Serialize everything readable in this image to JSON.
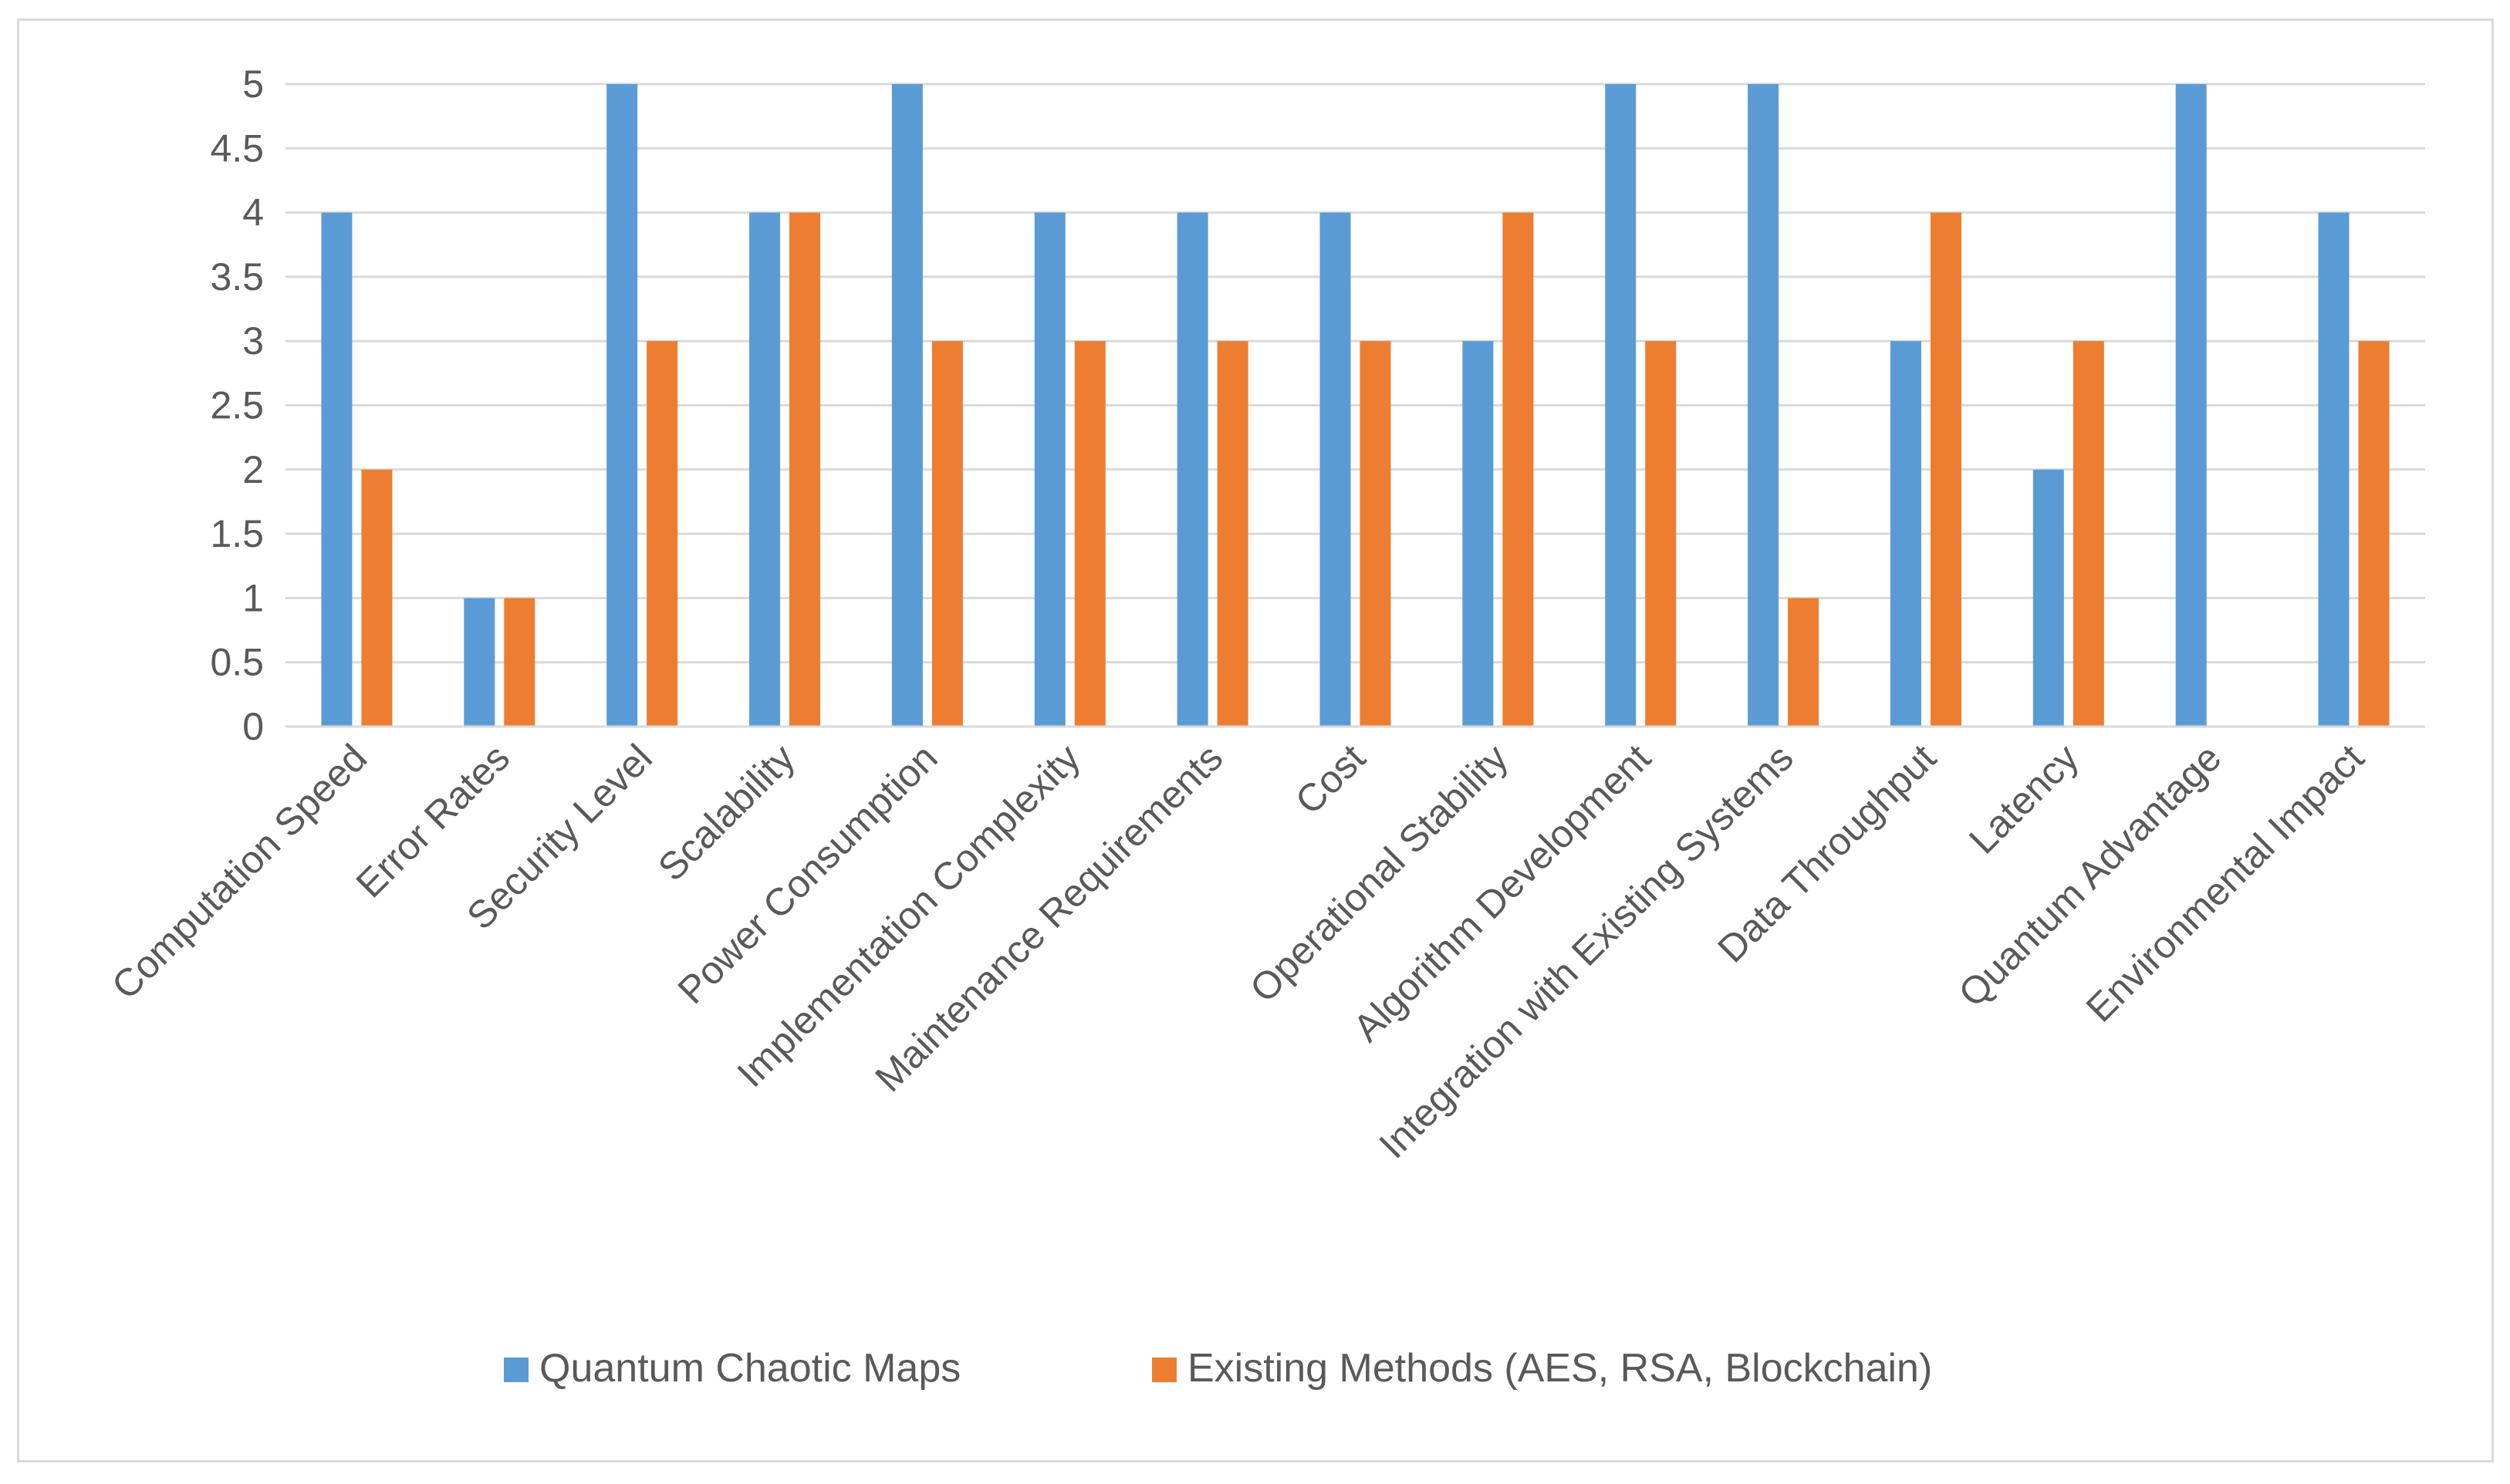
{
  "chart_data": {
    "type": "bar",
    "title": "",
    "xlabel": "",
    "ylabel": "",
    "ylim": [
      0,
      5
    ],
    "yticks": [
      "0",
      "0.5",
      "1",
      "1.5",
      "2",
      "2.5",
      "3",
      "3.5",
      "4",
      "4.5",
      "5"
    ],
    "grid": true,
    "legend_position": "bottom",
    "categories": [
      "Computation Speed",
      "Error Rates",
      "Security Level",
      "Scalability",
      "Power Consumption",
      "Implementation Complexity",
      "Maintenance Requirements",
      "Cost",
      "Operational Stability",
      "Algorithm Development",
      "Integration with Existing Systems",
      "Data Throughput",
      "Latency",
      "Quantum Advantage",
      "Environmental Impact"
    ],
    "series": [
      {
        "name": "Quantum Chaotic Maps",
        "color": "#5b9bd5",
        "values": [
          4,
          1,
          5,
          4,
          5,
          4,
          4,
          4,
          3,
          5,
          5,
          3,
          2,
          5,
          4
        ]
      },
      {
        "name": "Existing Methods (AES, RSA, Blockchain)",
        "color": "#ed7d31",
        "values": [
          2,
          1,
          3,
          4,
          3,
          3,
          3,
          3,
          4,
          3,
          1,
          4,
          3,
          0,
          3
        ]
      }
    ]
  }
}
